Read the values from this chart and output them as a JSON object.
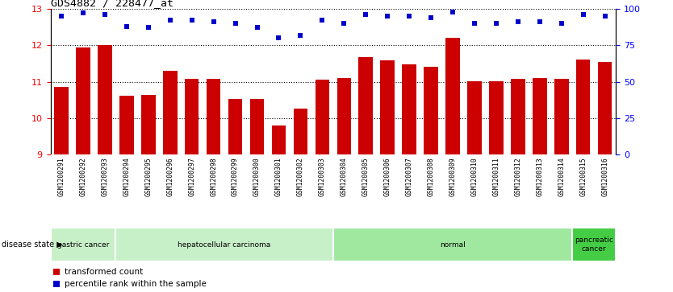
{
  "title": "GDS4882 / 228477_at",
  "samples": [
    "GSM1200291",
    "GSM1200292",
    "GSM1200293",
    "GSM1200294",
    "GSM1200295",
    "GSM1200296",
    "GSM1200297",
    "GSM1200298",
    "GSM1200299",
    "GSM1200300",
    "GSM1200301",
    "GSM1200302",
    "GSM1200303",
    "GSM1200304",
    "GSM1200305",
    "GSM1200306",
    "GSM1200307",
    "GSM1200308",
    "GSM1200309",
    "GSM1200310",
    "GSM1200311",
    "GSM1200312",
    "GSM1200313",
    "GSM1200314",
    "GSM1200315",
    "GSM1200316"
  ],
  "bar_values": [
    10.85,
    11.95,
    12.0,
    10.62,
    10.65,
    11.3,
    11.07,
    11.07,
    10.52,
    10.52,
    9.8,
    10.27,
    11.05,
    11.1,
    11.67,
    11.58,
    11.47,
    11.4,
    12.2,
    11.02,
    11.02,
    11.07,
    11.1,
    11.07,
    11.6,
    11.55
  ],
  "percentile_values": [
    95,
    97,
    96,
    88,
    87,
    92,
    92,
    91,
    90,
    87,
    80,
    82,
    92,
    90,
    96,
    95,
    95,
    94,
    98,
    90,
    90,
    91,
    91,
    90,
    96,
    95
  ],
  "bar_color": "#cc0000",
  "percentile_color": "#0000cc",
  "ylim_left": [
    9,
    13
  ],
  "ylim_right": [
    0,
    100
  ],
  "yticks_left": [
    9,
    10,
    11,
    12,
    13
  ],
  "yticks_right": [
    0,
    25,
    50,
    75,
    100
  ],
  "disease_groups": [
    {
      "label": "gastric cancer",
      "start": 0,
      "end": 3,
      "color": "#c8f0c8"
    },
    {
      "label": "hepatocellular carcinoma",
      "start": 3,
      "end": 13,
      "color": "#c8f0c8"
    },
    {
      "label": "normal",
      "start": 13,
      "end": 24,
      "color": "#a0e8a0"
    },
    {
      "label": "pancreatic\ncancer",
      "start": 24,
      "end": 26,
      "color": "#40cc40"
    }
  ],
  "disease_state_label": "disease state",
  "legend_bar_label": "transformed count",
  "legend_dot_label": "percentile rank within the sample",
  "background_color": "#ffffff",
  "xtick_bg_color": "#c8c8c8",
  "disease_border_color": "#ffffff"
}
